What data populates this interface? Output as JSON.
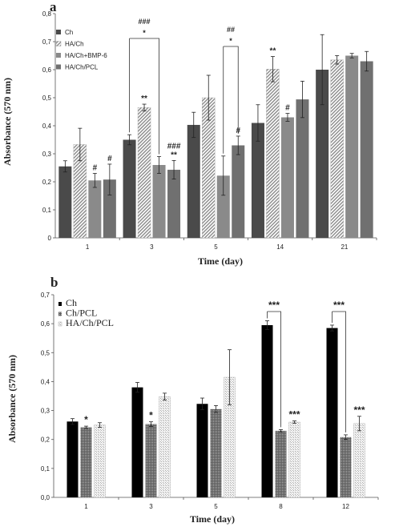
{
  "chart_data": [
    {
      "panel_label": "a",
      "type": "bar",
      "xlabel": "Time (day)",
      "ylabel": "Absorbance (570 nm)",
      "ylim": [
        0,
        0.8
      ],
      "yticks": [
        "0",
        "0,1",
        "0,2",
        "0,3",
        "0,4",
        "0,5",
        "0,6",
        "0,7",
        "0,8"
      ],
      "categories": [
        "1",
        "3",
        "5",
        "14",
        "21"
      ],
      "legend_position": "top-left",
      "series": [
        {
          "name": "Ch",
          "color": "#4a4a4a",
          "pattern": "solid-dark",
          "values": [
            0.255,
            0.35,
            0.403,
            0.41,
            0.6
          ],
          "errors": [
            0.02,
            0.018,
            0.045,
            0.065,
            0.125
          ]
        },
        {
          "name": "HA/Ch",
          "color": "#d9d9d9",
          "pattern": "diagonal-hatch",
          "values": [
            0.333,
            0.465,
            0.5,
            0.602,
            0.635
          ],
          "errors": [
            0.058,
            0.012,
            0.08,
            0.045,
            0.015
          ]
        },
        {
          "name": "HA/Ch+BMP-6",
          "color": "#808080",
          "pattern": "solid-gray",
          "values": [
            0.205,
            0.26,
            0.222,
            0.43,
            0.65
          ],
          "errors": [
            0.025,
            0.03,
            0.07,
            0.014,
            0.008
          ]
        },
        {
          "name": "HA/Ch/PCL",
          "color": "#6e6e6e",
          "pattern": "solid-mid",
          "values": [
            0.208,
            0.243,
            0.33,
            0.494,
            0.63
          ],
          "errors": [
            0.055,
            0.033,
            0.033,
            0.065,
            0.035
          ]
        }
      ],
      "annotations": [
        {
          "category": "1",
          "series": "HA/Ch+BMP-6",
          "text": "#"
        },
        {
          "category": "1",
          "series": "HA/Ch/PCL",
          "text": "#"
        },
        {
          "category": "3",
          "series": "HA/Ch",
          "text": "**"
        },
        {
          "category": "3",
          "series": "HA/Ch/PCL",
          "text": "**"
        },
        {
          "category": "3",
          "series": "HA/Ch/PCL",
          "text": "###"
        },
        {
          "category": "5",
          "series": "HA/Ch/PCL",
          "text": "#"
        },
        {
          "category": "14",
          "series": "HA/Ch",
          "text": "**"
        },
        {
          "category": "14",
          "series": "HA/Ch+BMP-6",
          "text": "#"
        }
      ],
      "brackets": [
        {
          "category": "3",
          "from": "Ch",
          "to": "HA/Ch+BMP-6",
          "labels": [
            "###",
            "*"
          ]
        },
        {
          "category": "5",
          "from": "HA/Ch+BMP-6",
          "to": "HA/Ch/PCL",
          "labels": [
            "##",
            "*"
          ]
        }
      ]
    },
    {
      "panel_label": "b",
      "type": "bar",
      "xlabel": "Time (day)",
      "ylabel": "Absorbance (570 nm)",
      "ylim": [
        0,
        0.7
      ],
      "yticks": [
        "0,0",
        "0,1",
        "0,2",
        "0,3",
        "0,4",
        "0,5",
        "0,6",
        "0,7"
      ],
      "categories": [
        "1",
        "3",
        "5",
        "8",
        "12"
      ],
      "legend_position": "top-left",
      "series": [
        {
          "name": "Ch",
          "color": "#000000",
          "pattern": "solid-black",
          "values": [
            0.262,
            0.38,
            0.323,
            0.595,
            0.585
          ],
          "errors": [
            0.01,
            0.017,
            0.02,
            0.015,
            0.01
          ]
        },
        {
          "name": "Ch/PCL",
          "color": "#8c8c8c",
          "pattern": "dense-dots",
          "values": [
            0.242,
            0.253,
            0.305,
            0.23,
            0.208
          ],
          "errors": [
            0.004,
            0.008,
            0.012,
            0.004,
            0.008
          ]
        },
        {
          "name": "HA/Ch/PCL",
          "color": "#e0e0e0",
          "pattern": "light-dots",
          "values": [
            0.25,
            0.348,
            0.415,
            0.26,
            0.255
          ],
          "errors": [
            0.008,
            0.012,
            0.095,
            0.004,
            0.025
          ]
        }
      ],
      "annotations": [
        {
          "category": "1",
          "series": "Ch/PCL",
          "text": "*"
        },
        {
          "category": "3",
          "series": "Ch/PCL",
          "text": "*"
        },
        {
          "category": "8",
          "series": "HA/Ch/PCL",
          "text": "***"
        },
        {
          "category": "12",
          "series": "HA/Ch/PCL",
          "text": "***"
        }
      ],
      "brackets": [
        {
          "category": "8",
          "from": "Ch",
          "to": "Ch/PCL",
          "labels": [
            "***"
          ]
        },
        {
          "category": "12",
          "from": "Ch",
          "to": "Ch/PCL",
          "labels": [
            "***"
          ]
        }
      ]
    }
  ]
}
